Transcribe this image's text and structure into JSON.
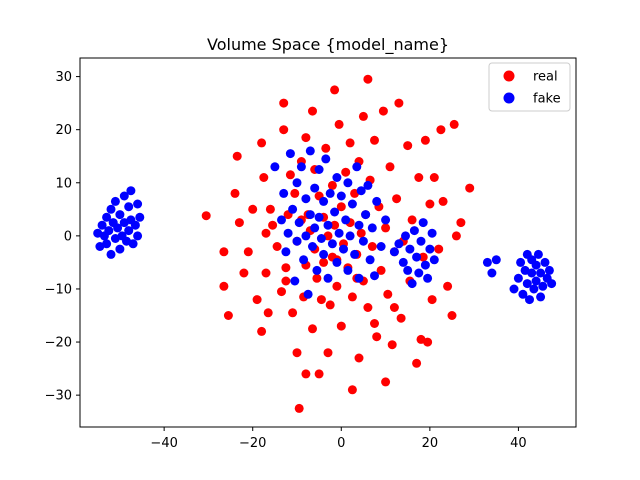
{
  "chart_data": {
    "type": "scatter",
    "title": "Volume Space {model_name}",
    "xlabel": "",
    "ylabel": "",
    "xlim": [
      -59,
      53
    ],
    "ylim": [
      -36,
      33.5
    ],
    "xticks": [
      -40,
      -20,
      0,
      20,
      40
    ],
    "yticks": [
      -30,
      -20,
      -10,
      0,
      10,
      20,
      30
    ],
    "grid": false,
    "legend_position": "top-right",
    "series": [
      {
        "name": "real",
        "color": "#ff0000",
        "points": [
          [
            -30.5,
            3.8
          ],
          [
            -26.5,
            -3
          ],
          [
            -26.5,
            -9.5
          ],
          [
            -25.5,
            -15
          ],
          [
            -24,
            8
          ],
          [
            -23.5,
            15
          ],
          [
            -23,
            2.5
          ],
          [
            -22,
            -7
          ],
          [
            -21,
            -3
          ],
          [
            -20,
            5
          ],
          [
            -19,
            -12
          ],
          [
            -18,
            17.5
          ],
          [
            -18,
            -18
          ],
          [
            -17.5,
            11
          ],
          [
            -17,
            -7
          ],
          [
            -17,
            0.5
          ],
          [
            -16.5,
            -14.5
          ],
          [
            -15.5,
            2
          ],
          [
            -14.5,
            -2
          ],
          [
            -13.5,
            -10.5
          ],
          [
            -13,
            25
          ],
          [
            -13,
            20
          ],
          [
            -12.5,
            -6
          ],
          [
            -12,
            4
          ],
          [
            -11.5,
            11.5
          ],
          [
            -11,
            -14.5
          ],
          [
            -10.5,
            8
          ],
          [
            -10,
            -22
          ],
          [
            -10,
            -1
          ],
          [
            -9.5,
            -32.5
          ],
          [
            -9,
            14
          ],
          [
            -9,
            3
          ],
          [
            -8.5,
            -11.5
          ],
          [
            -8,
            18.5
          ],
          [
            -8,
            -5.5
          ],
          [
            -7.5,
            4
          ],
          [
            -7,
            1
          ],
          [
            -6.5,
            23.5
          ],
          [
            -6.5,
            -17.5
          ],
          [
            -6,
            12.5
          ],
          [
            -6,
            -2.5
          ],
          [
            -5.5,
            -8
          ],
          [
            -5,
            7.5
          ],
          [
            -4.5,
            -12
          ],
          [
            -4,
            3.5
          ],
          [
            -4,
            -5
          ],
          [
            -3.5,
            16.5
          ],
          [
            -3,
            -22
          ],
          [
            -3,
            0
          ],
          [
            -2.5,
            -13
          ],
          [
            -2,
            9.5
          ],
          [
            -2,
            -4
          ],
          [
            -1.5,
            27.5
          ],
          [
            -1.5,
            2
          ],
          [
            -1,
            -9.5
          ],
          [
            -0.5,
            21
          ],
          [
            0,
            -17
          ],
          [
            0,
            5.5
          ],
          [
            0.5,
            -1.5
          ],
          [
            1,
            12
          ],
          [
            1.5,
            -6
          ],
          [
            2,
            17.5
          ],
          [
            2,
            2.5
          ],
          [
            2.5,
            -29
          ],
          [
            2.5,
            -11.5
          ],
          [
            3,
            8
          ],
          [
            3.5,
            -3.5
          ],
          [
            4,
            -23
          ],
          [
            4,
            14
          ],
          [
            4.5,
            0.5
          ],
          [
            5,
            22.5
          ],
          [
            5,
            -8.5
          ],
          [
            5.5,
            4
          ],
          [
            6,
            29.5
          ],
          [
            6,
            -13.5
          ],
          [
            6.5,
            10.5
          ],
          [
            7,
            -2
          ],
          [
            7.5,
            18
          ],
          [
            8,
            -19
          ],
          [
            8.5,
            5.5
          ],
          [
            9,
            -6.5
          ],
          [
            9.5,
            23.5
          ],
          [
            10,
            -27.5
          ],
          [
            10,
            1.5
          ],
          [
            10.5,
            -11
          ],
          [
            11,
            13
          ],
          [
            11.5,
            -20.5
          ],
          [
            12,
            -3
          ],
          [
            12.5,
            7
          ],
          [
            13,
            25
          ],
          [
            13.5,
            -15.5
          ],
          [
            14,
            -1
          ],
          [
            15,
            17
          ],
          [
            15.5,
            -8.5
          ],
          [
            16,
            3
          ],
          [
            17,
            -24
          ],
          [
            17.5,
            11
          ],
          [
            18,
            -19.5
          ],
          [
            18.5,
            -4
          ],
          [
            19,
            18
          ],
          [
            19.5,
            -20
          ],
          [
            20,
            6
          ],
          [
            20.5,
            -12
          ],
          [
            21,
            11
          ],
          [
            22,
            -2.5
          ],
          [
            22.5,
            20
          ],
          [
            23,
            6.5
          ],
          [
            24,
            -9.5
          ],
          [
            25,
            -15
          ],
          [
            25.5,
            21
          ],
          [
            26,
            0
          ],
          [
            27,
            2.5
          ],
          [
            29,
            9
          ],
          [
            -5,
            -26
          ],
          [
            -12.5,
            -8.5
          ],
          [
            -16,
            5
          ],
          [
            7.5,
            -16.5
          ],
          [
            -1,
            -4.5
          ],
          [
            3.5,
            -8
          ],
          [
            12,
            -13.5
          ],
          [
            -8,
            -26
          ]
        ]
      },
      {
        "name": "fake",
        "color": "#0000ff",
        "points": [
          [
            -55,
            0.5
          ],
          [
            -54.5,
            -2
          ],
          [
            -54,
            2
          ],
          [
            -53.5,
            0
          ],
          [
            -53,
            3.5
          ],
          [
            -53,
            -1.5
          ],
          [
            -52.5,
            1
          ],
          [
            -52,
            5
          ],
          [
            -52,
            -3.5
          ],
          [
            -51.5,
            2.5
          ],
          [
            -51,
            -0.5
          ],
          [
            -51,
            6.5
          ],
          [
            -50.5,
            1.5
          ],
          [
            -50,
            -2.5
          ],
          [
            -50,
            4
          ],
          [
            -49.5,
            0
          ],
          [
            -49,
            7.5
          ],
          [
            -49,
            2.5
          ],
          [
            -48.5,
            -1
          ],
          [
            -48,
            5.5
          ],
          [
            -48,
            1
          ],
          [
            -47.5,
            8.5
          ],
          [
            -47.5,
            3
          ],
          [
            -47,
            -1.5
          ],
          [
            -46.5,
            2
          ],
          [
            -46,
            6
          ],
          [
            -46,
            0
          ],
          [
            -45.5,
            3.5
          ],
          [
            -15,
            13
          ],
          [
            -13.5,
            3
          ],
          [
            -13,
            8
          ],
          [
            -12.5,
            -3
          ],
          [
            -12,
            0.5
          ],
          [
            -11.5,
            15.5
          ],
          [
            -11,
            5
          ],
          [
            -10.5,
            -8.5
          ],
          [
            -10,
            10
          ],
          [
            -10,
            -1
          ],
          [
            -9.5,
            2.5
          ],
          [
            -9,
            13
          ],
          [
            -8.5,
            -4.5
          ],
          [
            -8,
            7
          ],
          [
            -8,
            0
          ],
          [
            -7.5,
            -11
          ],
          [
            -7,
            16
          ],
          [
            -7,
            4
          ],
          [
            -6.5,
            -2
          ],
          [
            -6,
            9
          ],
          [
            -6,
            1.5
          ],
          [
            -5.5,
            -6.5
          ],
          [
            -5,
            12.5
          ],
          [
            -5,
            3.5
          ],
          [
            -4.5,
            -0.5
          ],
          [
            -4,
            6.5
          ],
          [
            -4,
            -3.5
          ],
          [
            -3.5,
            14.5
          ],
          [
            -3,
            2
          ],
          [
            -3,
            -8
          ],
          [
            -2.5,
            8
          ],
          [
            -2,
            -1.5
          ],
          [
            -1.5,
            4.5
          ],
          [
            -1,
            11
          ],
          [
            -1,
            -5
          ],
          [
            -0.5,
            0.5
          ],
          [
            0,
            7.5
          ],
          [
            0.5,
            -2.5
          ],
          [
            1,
            3
          ],
          [
            1.5,
            10
          ],
          [
            1.5,
            -6.5
          ],
          [
            2,
            0
          ],
          [
            2.5,
            6
          ],
          [
            3,
            -3.5
          ],
          [
            3.5,
            13
          ],
          [
            4,
            2
          ],
          [
            4,
            -8
          ],
          [
            4.5,
            8.5
          ],
          [
            5,
            -1
          ],
          [
            5.5,
            4
          ],
          [
            6,
            9.5
          ],
          [
            6.5,
            -4.5
          ],
          [
            7,
            1.5
          ],
          [
            7.5,
            -7.5
          ],
          [
            8,
            6.5
          ],
          [
            9,
            -2
          ],
          [
            10,
            3
          ],
          [
            12,
            -3
          ],
          [
            13,
            -1.5
          ],
          [
            14,
            -5
          ],
          [
            14.5,
            0
          ],
          [
            15,
            -6.5
          ],
          [
            15.5,
            -2.5
          ],
          [
            16,
            -9
          ],
          [
            16.5,
            1
          ],
          [
            17,
            -4
          ],
          [
            17.5,
            -7
          ],
          [
            18,
            -1
          ],
          [
            18.5,
            2.5
          ],
          [
            19,
            -5.5
          ],
          [
            19.5,
            -8
          ],
          [
            20,
            -2.5
          ],
          [
            20.5,
            0.5
          ],
          [
            21,
            -4.5
          ],
          [
            33,
            -5
          ],
          [
            34,
            -7
          ],
          [
            35,
            -4.5
          ],
          [
            39,
            -10
          ],
          [
            40,
            -8
          ],
          [
            40.5,
            -5
          ],
          [
            41,
            -11
          ],
          [
            41.5,
            -6.5
          ],
          [
            42,
            -3.5
          ],
          [
            42,
            -9
          ],
          [
            42.5,
            -12
          ],
          [
            43,
            -7
          ],
          [
            43,
            -4.5
          ],
          [
            43.5,
            -10
          ],
          [
            44,
            -5.5
          ],
          [
            44,
            -8.5
          ],
          [
            44.5,
            -3.5
          ],
          [
            45,
            -11.5
          ],
          [
            45,
            -7
          ],
          [
            45.5,
            -9.5
          ],
          [
            46,
            -5
          ],
          [
            46.5,
            -8
          ],
          [
            47,
            -6.5
          ],
          [
            47.5,
            -9
          ]
        ]
      }
    ]
  }
}
